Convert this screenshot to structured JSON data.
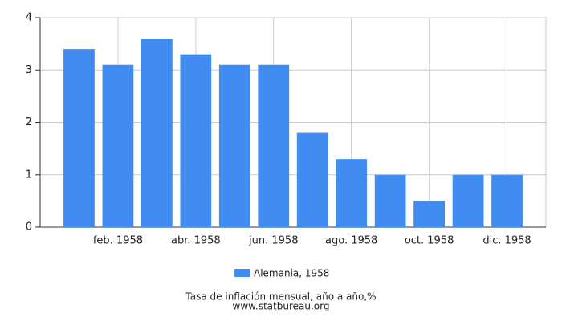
{
  "chart_data": {
    "type": "bar",
    "categories": [
      null,
      "feb. 1958",
      null,
      "abr. 1958",
      null,
      "jun. 1958",
      null,
      "ago. 1958",
      null,
      "oct. 1958",
      null,
      "dic. 1958"
    ],
    "series": [
      {
        "name": "Alemania, 1958",
        "color": "#418cf0",
        "values": [
          3.4,
          3.1,
          3.6,
          3.3,
          3.1,
          3.1,
          1.8,
          1.3,
          1.0,
          0.5,
          1.0,
          1.0
        ]
      }
    ],
    "ylim": [
      0,
      4
    ],
    "yticks": [
      0,
      1,
      2,
      3,
      4
    ],
    "grid": true,
    "caption": "Tasa de inflación mensual, año a año,%",
    "source": "www.statbureau.org"
  }
}
